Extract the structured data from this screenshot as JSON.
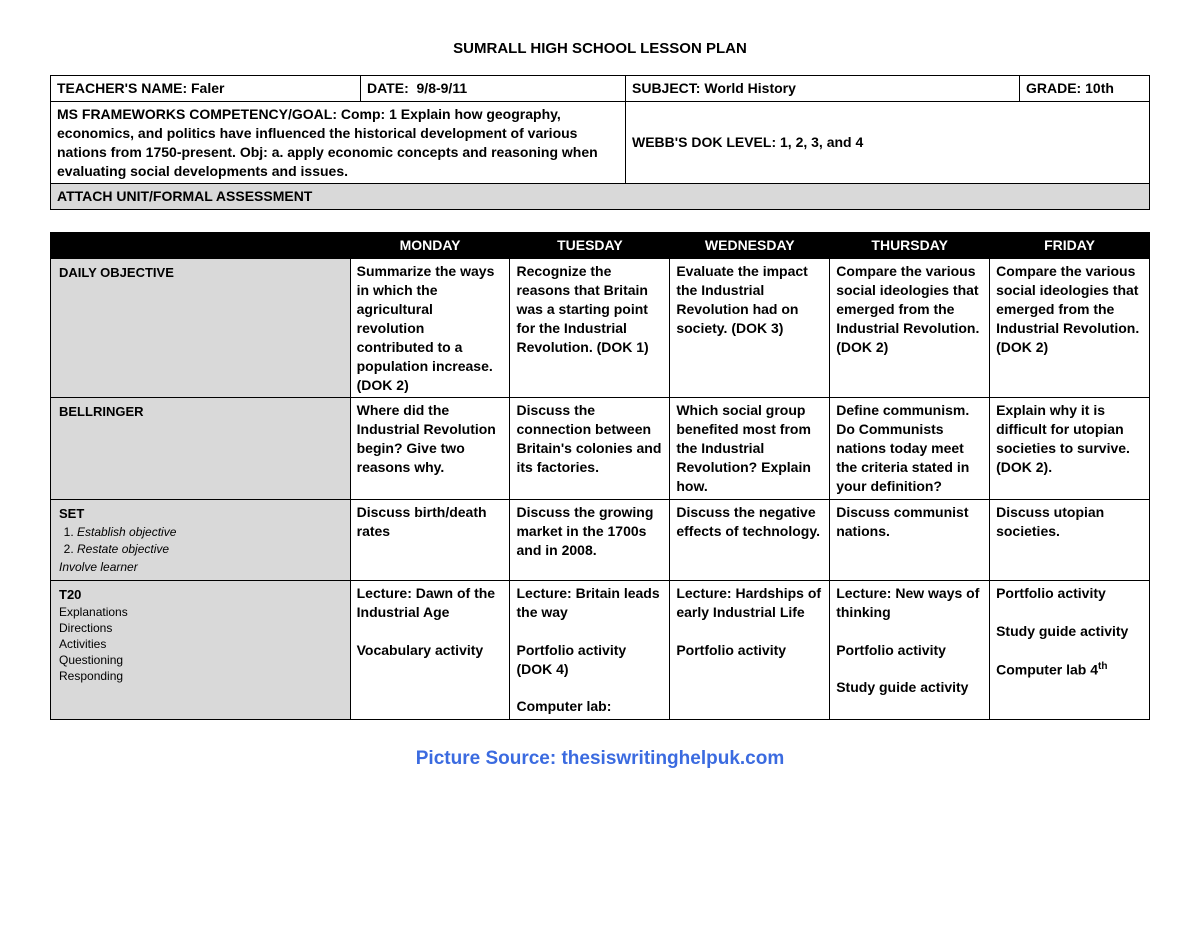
{
  "title": "SUMRALL HIGH SCHOOL LESSON PLAN",
  "header": {
    "teacher_label": "TEACHER'S NAME:",
    "teacher_value": "Faler",
    "date_label": "DATE:",
    "date_value": "9/8-9/11",
    "subject_label": "SUBJECT:",
    "subject_value": "World History",
    "grade_label": "GRADE:",
    "grade_value": "10th",
    "competency_label": "MS FRAMEWORKS COMPETENCY/GOAL:",
    "competency_value": "Comp: 1 Explain how geography, economics, and politics have influenced the historical development of various nations from 1750-present.  Obj: a. apply economic concepts and reasoning when evaluating social developments and issues.",
    "dok_label": "WEBB'S DOK LEVEL:",
    "dok_value": "1, 2, 3, and 4",
    "attach": "ATTACH UNIT/FORMAL ASSESSMENT"
  },
  "days": [
    "MONDAY",
    "TUESDAY",
    "WEDNESDAY",
    "THURSDAY",
    "FRIDAY"
  ],
  "rows": [
    {
      "label": "DAILY OBJECTIVE",
      "sub": "",
      "cells": [
        "Summarize the ways in which the agricultural revolution contributed to a population increase. (DOK 2)",
        "Recognize the reasons that Britain was a starting point for the Industrial Revolution. (DOK 1)",
        "Evaluate the impact the Industrial Revolution had on society. (DOK 3)",
        "Compare the various social ideologies that emerged from the Industrial Revolution. (DOK 2)",
        "Compare the various social ideologies that emerged from the Industrial Revolution. (DOK 2)"
      ]
    },
    {
      "label": "BELLRINGER",
      "sub": "",
      "cells": [
        "Where did the Industrial Revolution begin? Give two reasons why.",
        "Discuss the connection between Britain's colonies and its factories.",
        "Which social group benefited most from the Industrial Revolution? Explain how.",
        "Define communism. Do Communists nations today meet the criteria stated in your definition?",
        "Explain why it is difficult for utopian societies to survive. (DOK 2)."
      ]
    },
    {
      "label": "SET",
      "sub": "<ol><li><em>Establish objective</em></li><li><em>Restate objective</em></li></ol><em>Involve learner</em>",
      "cells": [
        "Discuss birth/death rates",
        "Discuss the growing market in the 1700s and in 2008.",
        "Discuss the negative effects of technology.",
        "Discuss communist nations.",
        "Discuss utopian societies."
      ]
    },
    {
      "label": "T20",
      "sub": "Explanations<br>Directions<br>Activities<br>Questioning<br>Responding",
      "cells": [
        "Lecture: Dawn of the Industrial Age\n\nVocabulary activity",
        "Lecture: Britain leads the way\n\nPortfolio activity (DOK 4)\n\nComputer lab:",
        " Lecture: Hardships of early Industrial Life\n\nPortfolio activity",
        "Lecture: New ways of thinking\n\nPortfolio activity\n\nStudy guide activity",
        " Portfolio activity\n\nStudy guide activity\n\nComputer lab 4"
      ]
    }
  ],
  "source_label": "Picture Source:",
  "source_value": "thesiswritinghelpuk.com"
}
